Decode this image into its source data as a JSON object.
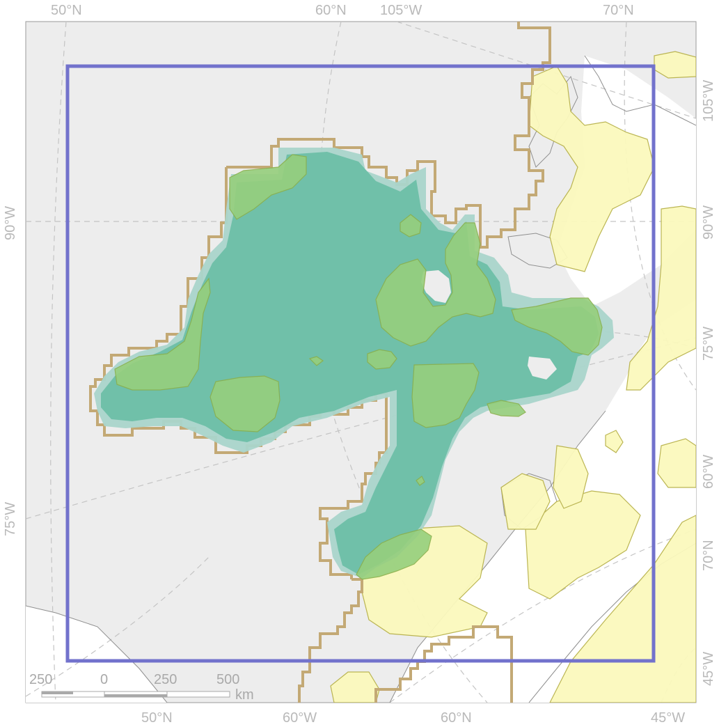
{
  "map": {
    "colors": {
      "background": "#ededed",
      "ocean": "#ffffff",
      "coast": "#8f8f8f",
      "bbox": "#7272cc",
      "grid_outline": "#c3a975",
      "core_area": "#6dbfa6",
      "core_fringe": "#aad5cb",
      "green_zone": "#96cf7d",
      "yellow_zone": "#fbf9bd",
      "yellow_edge": "#b8b24a",
      "graticule": "#c4c4c4"
    },
    "graticule_labels": {
      "top": [
        "50°N",
        "60°N",
        "105°W",
        "70°N"
      ],
      "bottom": [
        "50°N",
        "60°W",
        "60°N",
        "45°W"
      ],
      "left": [
        "90°W",
        "75°W"
      ],
      "right": [
        "105°W",
        "90°W",
        "75°W",
        "60°W",
        "70°N",
        "45°W"
      ]
    },
    "scale_bar": {
      "ticks": [
        "250",
        "0",
        "250",
        "500"
      ],
      "unit": "km"
    }
  }
}
